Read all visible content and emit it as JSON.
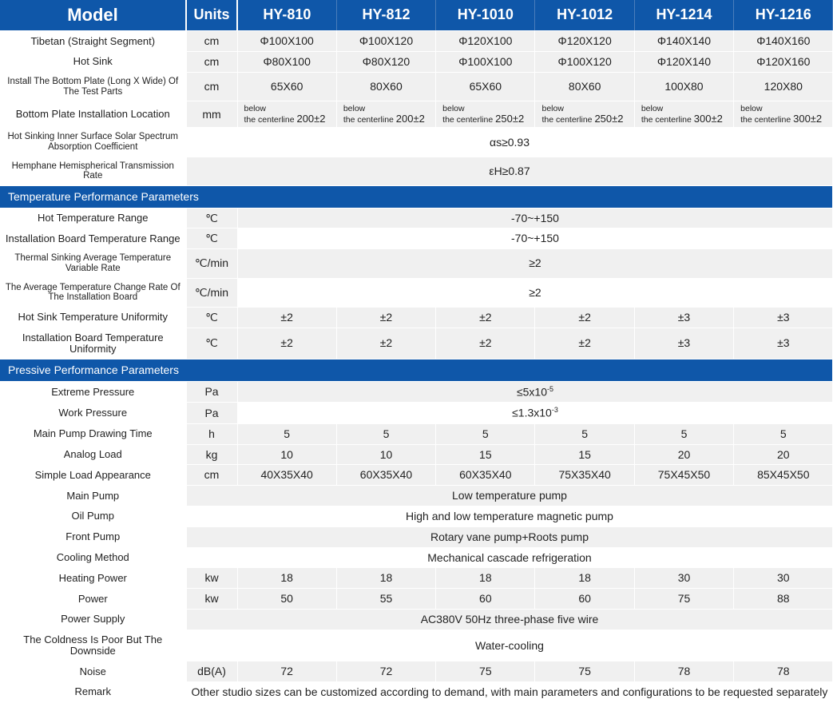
{
  "header": {
    "model": "Model",
    "units": "Units",
    "models": [
      "HY-810",
      "HY-812",
      "HY-1010",
      "HY-1012",
      "HY-1214",
      "HY-1216"
    ]
  },
  "rows": {
    "tibetan": {
      "label": "Tibetan (Straight Segment)",
      "units": "cm",
      "v": [
        "Φ100X100",
        "Φ100X120",
        "Φ120X100",
        "Φ120X120",
        "Φ140X140",
        "Φ140X160"
      ]
    },
    "hotsink": {
      "label": "Hot Sink",
      "units": "cm",
      "v": [
        "Φ80X100",
        "Φ80X120",
        "Φ100X100",
        "Φ100X120",
        "Φ120X140",
        "Φ120X160"
      ]
    },
    "bottomplate": {
      "label": "Install The Bottom Plate (Long X Wide) Of The Test Parts",
      "units": "cm",
      "v": [
        "65X60",
        "80X60",
        "65X60",
        "80X60",
        "100X80",
        "120X80"
      ]
    },
    "bpinstall": {
      "label": "Bottom Plate Installation Location",
      "units": "mm",
      "prefix": "below the centerline",
      "v": [
        "200±2",
        "200±2",
        "250±2",
        "250±2",
        "300±2",
        "300±2"
      ]
    },
    "absorption": {
      "label": "Hot Sinking Inner Surface Solar Spectrum Absorption Coefficient",
      "span": "αs≥0.93"
    },
    "hemisphere": {
      "label": "Hemphane Hemispherical Transmission Rate",
      "span": "εH≥0.87"
    },
    "sec_temp": "Temperature Performance Parameters",
    "hotrange": {
      "label": "Hot Temperature Range",
      "units": "℃",
      "span": "-70~+150"
    },
    "boardrange": {
      "label": "Installation Board Temperature Range",
      "units": "℃",
      "span": "-70~+150"
    },
    "thermalsink": {
      "label": "Thermal Sinking Average Temperature Variable Rate",
      "units": "℃/min",
      "span": "≥2"
    },
    "avgchange": {
      "label": "The Average Temperature Change Rate Of The Installation Board",
      "units": "℃/min",
      "span": "≥2"
    },
    "hotuniform": {
      "label": "Hot Sink Temperature Uniformity",
      "units": "℃",
      "v": [
        "±2",
        "±2",
        "±2",
        "±2",
        "±3",
        "±3"
      ]
    },
    "boarduniform": {
      "label": "Installation Board Temperature Uniformity",
      "units": "℃",
      "v": [
        "±2",
        "±2",
        "±2",
        "±2",
        "±3",
        "±3"
      ]
    },
    "sec_press": "Pressive Performance Parameters",
    "extremep": {
      "label": "Extreme Pressure",
      "units": "Pa",
      "span_html": "≤5x10<sup>-5</sup>"
    },
    "workp": {
      "label": "Work Pressure",
      "units": "Pa",
      "span_html": "≤1.3x10<sup>-3</sup>"
    },
    "drawtime": {
      "label": "Main Pump Drawing Time",
      "units": "h",
      "v": [
        "5",
        "5",
        "5",
        "5",
        "5",
        "5"
      ]
    },
    "analog": {
      "label": "Analog Load",
      "units": "kg",
      "v": [
        "10",
        "10",
        "15",
        "15",
        "20",
        "20"
      ]
    },
    "simple": {
      "label": "Simple Load Appearance",
      "units": "cm",
      "v": [
        "40X35X40",
        "60X35X40",
        "60X35X40",
        "75X35X40",
        "75X45X50",
        "85X45X50"
      ]
    },
    "mainpump": {
      "label": "Main Pump",
      "span": "Low temperature pump"
    },
    "oilpump": {
      "label": "Oil Pump",
      "span": "High and low temperature magnetic pump"
    },
    "frontpump": {
      "label": "Front Pump",
      "span": "Rotary vane pump+Roots pump"
    },
    "cooling": {
      "label": "Cooling Method",
      "span": "Mechanical cascade refrigeration"
    },
    "heatpower": {
      "label": "Heating Power",
      "units": "kw",
      "v": [
        "18",
        "18",
        "18",
        "18",
        "30",
        "30"
      ]
    },
    "power": {
      "label": "Power",
      "units": "kw",
      "v": [
        "50",
        "55",
        "60",
        "60",
        "75",
        "88"
      ]
    },
    "supply": {
      "label": "Power Supply",
      "span": "AC380V 50Hz three-phase five wire"
    },
    "coldness": {
      "label": "The Coldness Is Poor But The Downside",
      "span": "Water-cooling"
    },
    "noise": {
      "label": "Noise",
      "units": "dB(A)",
      "v": [
        "72",
        "72",
        "75",
        "75",
        "78",
        "78"
      ]
    },
    "remark": {
      "label": "Remark",
      "span": "Other studio sizes can be customized according to demand, with main parameters and configurations to be requested separately"
    }
  },
  "colors": {
    "header_bg": "#0f57a9",
    "header_fg": "#ffffff",
    "cell_bg": "#f0f0f0",
    "alt_bg": "#ffffff"
  }
}
